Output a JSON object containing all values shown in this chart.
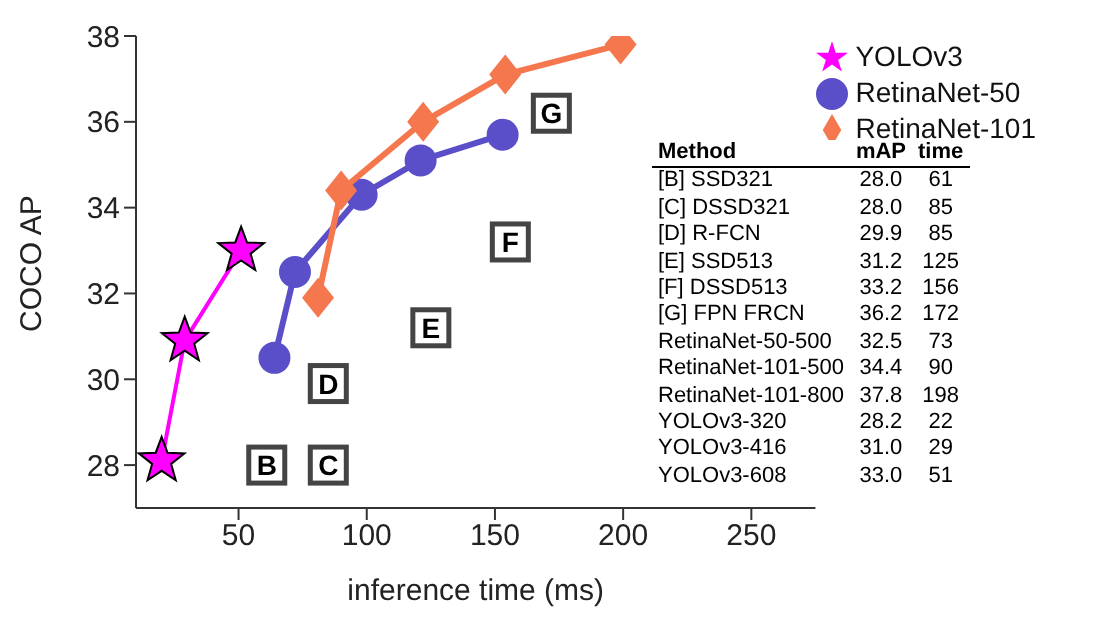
{
  "chart_data": {
    "type": "line",
    "xlabel": "inference time (ms)",
    "ylabel": "COCO AP",
    "xlim": [
      10,
      275
    ],
    "xticks": [
      50,
      100,
      150,
      200,
      250
    ],
    "ylim": [
      27,
      38
    ],
    "yticks": [
      28,
      30,
      32,
      34,
      36,
      38
    ],
    "grid": false,
    "legend": "top right",
    "series": [
      {
        "name": "YOLOv3",
        "color": "#ff00ff",
        "marker": "star",
        "x": [
          20,
          29,
          51
        ],
        "values": [
          28.1,
          30.9,
          33.0
        ]
      },
      {
        "name": "RetinaNet-50",
        "color": "#5b4fc9",
        "marker": "circle",
        "x": [
          64,
          72,
          98,
          121,
          153
        ],
        "values": [
          30.5,
          32.5,
          34.3,
          35.1,
          35.7
        ]
      },
      {
        "name": "RetinaNet-101",
        "color": "#f4774e",
        "marker": "diamond",
        "x": [
          81,
          90,
          122,
          154,
          199
        ],
        "values": [
          31.9,
          34.4,
          36.0,
          37.1,
          37.8
        ]
      }
    ],
    "annotations": [
      {
        "text": "B",
        "x": 61,
        "y": 28.0
      },
      {
        "text": "C",
        "x": 85,
        "y": 28.0
      },
      {
        "text": "D",
        "x": 85,
        "y": 29.9
      },
      {
        "text": "E",
        "x": 125,
        "y": 31.2
      },
      {
        "text": "F",
        "x": 156,
        "y": 33.2
      },
      {
        "text": "G",
        "x": 172,
        "y": 36.2
      },
      "Method",
      "mAP",
      "time",
      "[B] SSD321",
      "28.0",
      "61",
      "[C] DSSD321",
      "28.0",
      "85",
      "[D] R-FCN",
      "29.9",
      "85",
      "[E] SSD513",
      "31.2",
      "125",
      "[F] DSSD513",
      "33.2",
      "156",
      "[G] FPN FRCN",
      "36.2",
      "172",
      "RetinaNet-50-500",
      "32.5",
      "73",
      "RetinaNet-101-500",
      "34.4",
      "90",
      "RetinaNet-101-800",
      "37.8",
      "198",
      "YOLOv3-320",
      "28.2",
      "22",
      "YOLOv3-416",
      "31.0",
      "29",
      "YOLOv3-608",
      "33.0",
      "51"
    ]
  }
}
